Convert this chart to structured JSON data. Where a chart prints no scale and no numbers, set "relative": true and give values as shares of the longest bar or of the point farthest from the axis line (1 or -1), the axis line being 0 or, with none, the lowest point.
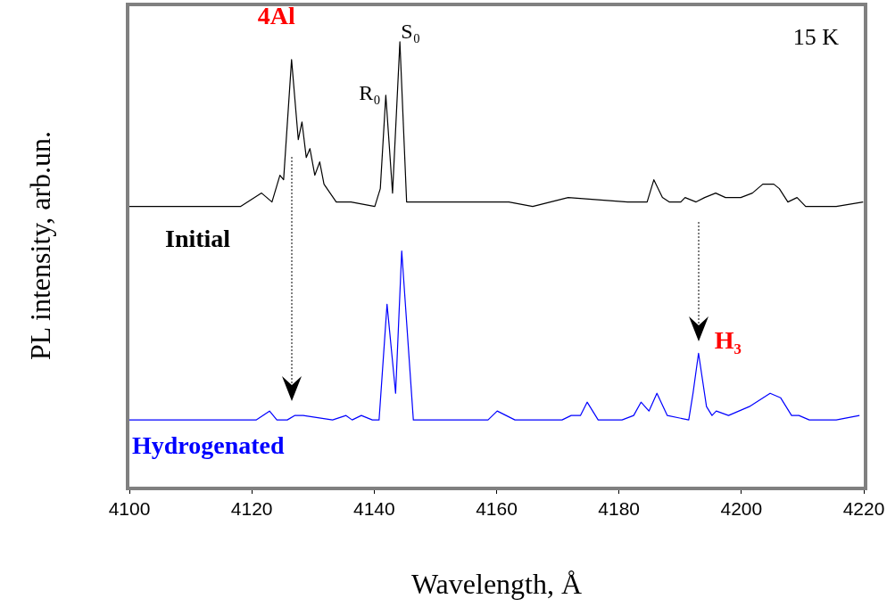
{
  "chart_data": {
    "type": "line",
    "relative": true,
    "xlabel": "Wavelength, Å",
    "ylabel": "PL intensity, arb.un.",
    "xlim": [
      4100,
      4220
    ],
    "xticks": [
      4100,
      4120,
      4140,
      4160,
      4180,
      4200,
      4220
    ],
    "legend": false,
    "marker": "none",
    "line_style": "solid",
    "annotations": [
      {
        "text": "4Al",
        "x": 4126.5,
        "y": 0.96
      },
      {
        "text": "R₀",
        "x": 4141.9,
        "y": 0.88
      },
      {
        "text": "S₀",
        "x": 4144.2,
        "y": 1
      },
      {
        "text": "H₃",
        "x": 4193,
        "y": 0.3
      },
      "15 K"
    ],
    "series": [
      {
        "name": "Initial",
        "color": "#000000",
        "x": [
          4100,
          4118.2,
          4121.6,
          4123.3,
          4124.6,
          4125.2,
          4126.5,
          4127.6,
          4128.2,
          4128.9,
          4129.5,
          4130.3,
          4131.1,
          4131.8,
          4133.8,
          4136.2,
          4140.1,
          4141,
          4141.9,
          4143,
          4144.2,
          4145.3,
          4148.4,
          4162,
          4165.9,
          4171.7,
          4181.4,
          4184.6,
          4185.7,
          4187.1,
          4188.2,
          4190.1,
          4190.8,
          4192.6,
          4194,
          4195.8,
          4197.4,
          4199.9,
          4201.8,
          4203.5,
          4205.3,
          4206.2,
          4207.6,
          4209.1,
          4210.5,
          4215.5,
          4219.9
        ],
        "values": [
          0.63,
          0.63,
          0.66,
          0.64,
          0.7,
          0.69,
          0.96,
          0.78,
          0.82,
          0.74,
          0.76,
          0.7,
          0.73,
          0.68,
          0.64,
          0.64,
          0.63,
          0.67,
          0.88,
          0.66,
          1,
          0.64,
          0.64,
          0.64,
          0.63,
          0.65,
          0.64,
          0.64,
          0.69,
          0.65,
          0.64,
          0.64,
          0.65,
          0.64,
          0.65,
          0.66,
          0.65,
          0.65,
          0.66,
          0.68,
          0.68,
          0.67,
          0.64,
          0.65,
          0.63,
          0.63,
          0.64
        ]
      },
      {
        "name": "Hydrogenated",
        "color": "#0000ff",
        "x": [
          4100,
          4118.2,
          4119.4,
          4120.7,
          4122.9,
          4124.1,
          4125.8,
          4127,
          4128.4,
          4133.2,
          4135.4,
          4136.4,
          4137.9,
          4139.7,
          4140.8,
          4142.1,
          4143.5,
          4144.5,
          4146.4,
          4148.4,
          4158.6,
          4160.1,
          4163,
          4164.2,
          4170.7,
          4172.2,
          4173.7,
          4174.8,
          4176.6,
          4180.5,
          4182.4,
          4183.6,
          4184.9,
          4186.2,
          4187.9,
          4191.4,
          4192.1,
          4193,
          4194.3,
          4195.2,
          4195.9,
          4197.9,
          4201.3,
          4204.7,
          4206.4,
          4208.2,
          4209.4,
          4211.1,
          4215.5,
          4219.3
        ],
        "values": [
          0.15,
          0.15,
          0.15,
          0.15,
          0.17,
          0.15,
          0.15,
          0.16,
          0.16,
          0.15,
          0.16,
          0.15,
          0.16,
          0.15,
          0.15,
          0.41,
          0.21,
          0.53,
          0.15,
          0.15,
          0.15,
          0.17,
          0.15,
          0.15,
          0.15,
          0.16,
          0.16,
          0.19,
          0.15,
          0.15,
          0.16,
          0.19,
          0.17,
          0.21,
          0.16,
          0.15,
          0.21,
          0.3,
          0.18,
          0.16,
          0.17,
          0.16,
          0.18,
          0.21,
          0.2,
          0.16,
          0.16,
          0.15,
          0.15,
          0.16
        ]
      }
    ]
  }
}
